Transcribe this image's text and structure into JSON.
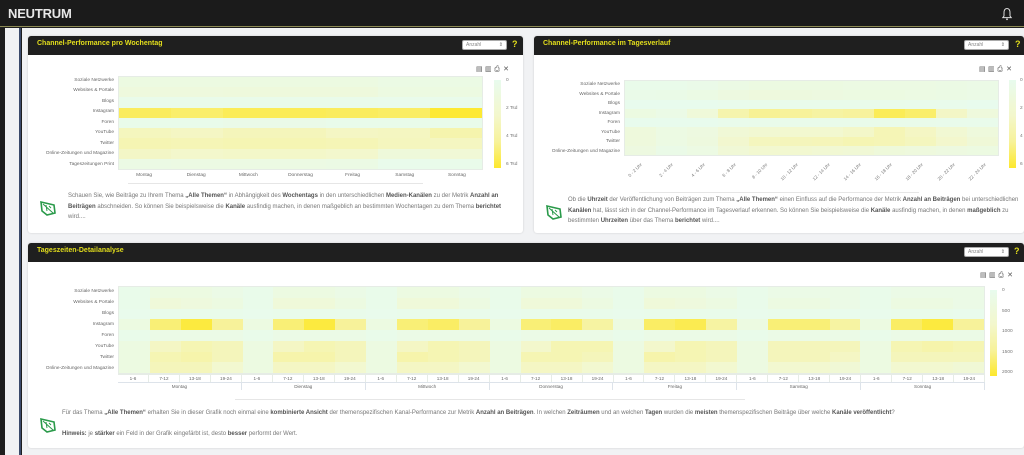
{
  "app": {
    "logo": "NEUTRUM"
  },
  "panels": [
    {
      "title": "Channel-Performance pro Wochentag",
      "metric_select": "Anzahl",
      "help": "?",
      "description": {
        "p1": "Schauen Sie, wie Beiträge zu Ihrem Thema ",
        "b1": "„Alle Themen“",
        "p2": " in Abhängigkeit des ",
        "b2": "Wochentags",
        "p3": " in den unterschiedlichen ",
        "b3": "Medien-Kanälen",
        "p4": " zu der Metrik ",
        "b4": "Anzahl an Beiträgen",
        "p5": " abschneiden. So können Sie beispielsweise die ",
        "b5": "Kanäle",
        "p6": " ausfindig machen, in denen maßgeblich an bestimmten Wochentagen zu dem Thema ",
        "b6": "berichtet",
        "p7": " wird...."
      }
    },
    {
      "title": "Channel-Performance im Tagesverlauf",
      "metric_select": "Anzahl",
      "help": "?",
      "description": {
        "p1": "Ob die ",
        "b1": "Uhrzeit",
        "p2": " der Veröffentlichung von Beiträgen zum Thema ",
        "b2": "„Alle Themen“",
        "p3": " einen Einfluss auf die Performance der Metrik ",
        "b3": "Anzahl an Beiträgen",
        "p4": " bei unterschiedlichen ",
        "b4": "Kanälen",
        "p5": " hat, lässt sich in der Channel-Performance im Tagesverlauf erkennen. So können Sie beispielsweise die ",
        "b5": "Kanäle",
        "p6": " ausfindig machen, in denen ",
        "b6": "maßgeblich",
        "p7": " zu bestimmten ",
        "b7": "Uhrzeiten",
        "p8": " über das Thema ",
        "b8": "berichtet",
        "p9": " wird...."
      }
    },
    {
      "title": "Tageszeiten-Detailanalyse",
      "metric_select": "Anzahl",
      "help": "?",
      "description": {
        "p1": "Für das Thema ",
        "b1": "„Alle Themen“",
        "p2": " erhalten Sie in dieser Grafik noch einmal eine ",
        "b2": "kombinierte Ansicht",
        "p3": " der themenspezifischen Kanal-Performance zur Metrik ",
        "b3": "Anzahl an Beiträgen",
        "p4": ". In welchen ",
        "b4": "Zeiträumen",
        "p5": " und an welchen ",
        "b5": "Tagen",
        "p6": " wurden die ",
        "b6": "meisten",
        "p7": " themenspezifischen Beiträge über welche ",
        "b7": "Kanäle veröffentlicht",
        "p8": "?",
        "hint_label": "Hinweis:",
        "h1": " je ",
        "hb1": "stärker",
        "h2": " ein Feld in der Grafik eingefärbt ist, desto ",
        "hb2": "besser",
        "h3": " performt der Wert."
      }
    }
  ],
  "chart_data": [
    {
      "type": "heatmap",
      "title": "Channel-Performance pro Wochentag",
      "rows": [
        "Soziale Netzwerke",
        "Websites & Portale",
        "Blogs",
        "Instagram",
        "Foren",
        "YouTube",
        "Twitter",
        "Online-Zeitungen und Magazine",
        "Tageszeitungen Print"
      ],
      "categories": [
        "Montag",
        "Dienstag",
        "Mittwoch",
        "Donnerstag",
        "Freitag",
        "Samstag",
        "Sonntag"
      ],
      "values": [
        [
          900,
          900,
          900,
          900,
          900,
          700,
          700
        ],
        [
          1200,
          1200,
          1300,
          1300,
          1300,
          900,
          900
        ],
        [
          300,
          300,
          300,
          300,
          300,
          200,
          200
        ],
        [
          5200,
          5000,
          5300,
          5300,
          5200,
          5100,
          5900
        ],
        [
          300,
          300,
          400,
          400,
          300,
          300,
          300
        ],
        [
          2900,
          2700,
          3000,
          3000,
          2700,
          2800,
          3500
        ],
        [
          3300,
          3200,
          3300,
          3300,
          3200,
          2900,
          2800
        ],
        [
          2600,
          2400,
          2500,
          2500,
          2300,
          1400,
          1700
        ],
        [
          700,
          800,
          800,
          800,
          700,
          200,
          300
        ]
      ],
      "legend": {
        "labels": [
          "0",
          "2 Tsd",
          "4 Tsd",
          "6 Tsd"
        ],
        "range": [
          0,
          6000
        ]
      }
    },
    {
      "type": "heatmap",
      "title": "Channel-Performance im Tagesverlauf",
      "rows": [
        "Soziale Netzwerke",
        "Websites & Portale",
        "Blogs",
        "Instagram",
        "Foren",
        "YouTube",
        "Twitter",
        "Online-Zeitungen und Magazine"
      ],
      "categories": [
        "0 - 2 Uhr",
        "2 - 4 Uhr",
        "4 - 6 Uhr",
        "6 - 8 Uhr",
        "8 - 10 Uhr",
        "10 - 12 Uhr",
        "12 - 14 Uhr",
        "14 - 16 Uhr",
        "16 - 18 Uhr",
        "18 - 20 Uhr",
        "20 - 22 Uhr",
        "22 - 24 Uhr"
      ],
      "values": [
        [
          300,
          300,
          400,
          700,
          900,
          900,
          900,
          800,
          800,
          800,
          700,
          600
        ],
        [
          400,
          500,
          700,
          1000,
          1200,
          1100,
          1000,
          900,
          900,
          800,
          700,
          600
        ],
        [
          100,
          100,
          100,
          200,
          300,
          300,
          300,
          300,
          300,
          200,
          200,
          100
        ],
        [
          900,
          600,
          1500,
          3500,
          4300,
          4200,
          3900,
          4100,
          5300,
          5000,
          2600,
          1300
        ],
        [
          100,
          100,
          100,
          200,
          300,
          300,
          300,
          300,
          300,
          300,
          200,
          200
        ],
        [
          1300,
          800,
          1000,
          1700,
          2000,
          2100,
          2100,
          2500,
          3200,
          2700,
          1900,
          1300
        ],
        [
          1300,
          800,
          1100,
          2200,
          2900,
          3000,
          3100,
          3300,
          3200,
          2900,
          2300,
          1600
        ],
        [
          1000,
          500,
          800,
          1700,
          2100,
          2100,
          1900,
          1800,
          1400,
          1200,
          1000,
          900
        ]
      ],
      "legend": {
        "labels": [
          "0",
          "2 Tsd",
          "4 Tsd",
          "6 Tsd"
        ],
        "range": [
          0,
          6000
        ]
      }
    },
    {
      "type": "heatmap",
      "title": "Tageszeiten-Detailanalyse",
      "rows": [
        "Soziale Netzwerke",
        "Websites & Portale",
        "Blogs",
        "Instagram",
        "Foren",
        "YouTube",
        "Twitter",
        "Online-Zeitungen und Magazine"
      ],
      "day_groups": [
        "Montag",
        "Dienstag",
        "Mittwoch",
        "Donnerstag",
        "Freitag",
        "Samstag",
        "Sonntag"
      ],
      "slots": [
        "1-6",
        "7-12",
        "13-18",
        "19-24"
      ],
      "values": [
        [
          100,
          300,
          300,
          200,
          100,
          300,
          300,
          200,
          100,
          300,
          300,
          200,
          100,
          300,
          300,
          200,
          100,
          300,
          300,
          200,
          100,
          200,
          200,
          200,
          100,
          200,
          200,
          200
        ],
        [
          100,
          500,
          400,
          300,
          100,
          500,
          500,
          300,
          100,
          500,
          500,
          300,
          100,
          500,
          500,
          300,
          100,
          500,
          400,
          300,
          100,
          300,
          300,
          200,
          100,
          300,
          300,
          200
        ],
        [
          50,
          100,
          100,
          100,
          50,
          100,
          100,
          100,
          50,
          100,
          100,
          100,
          50,
          100,
          100,
          100,
          50,
          100,
          100,
          100,
          50,
          100,
          100,
          50,
          50,
          100,
          100,
          50
        ],
        [
          300,
          1600,
          1900,
          1400,
          300,
          1600,
          1900,
          1400,
          300,
          1600,
          1700,
          1400,
          300,
          1600,
          1700,
          1300,
          300,
          1700,
          1800,
          1300,
          300,
          1600,
          1600,
          1300,
          300,
          1700,
          1900,
          1400
        ],
        [
          100,
          200,
          200,
          200,
          100,
          200,
          200,
          200,
          100,
          200,
          200,
          200,
          100,
          200,
          200,
          200,
          100,
          200,
          200,
          200,
          100,
          200,
          200,
          200,
          100,
          200,
          200,
          200
        ],
        [
          300,
          900,
          1100,
          1000,
          300,
          900,
          1100,
          1000,
          300,
          900,
          1100,
          1000,
          300,
          800,
          1100,
          1100,
          300,
          800,
          1100,
          1000,
          300,
          1000,
          1000,
          1000,
          300,
          1100,
          1200,
          1100
        ],
        [
          300,
          1100,
          1200,
          1000,
          300,
          1200,
          1200,
          1000,
          300,
          1200,
          1100,
          1000,
          300,
          1100,
          1100,
          1000,
          300,
          1200,
          1100,
          1000,
          300,
          1000,
          1000,
          900,
          300,
          1000,
          1000,
          1000
        ],
        [
          300,
          1000,
          1000,
          700,
          300,
          900,
          900,
          700,
          300,
          900,
          900,
          700,
          300,
          900,
          900,
          700,
          300,
          900,
          900,
          700,
          300,
          700,
          700,
          600,
          300,
          700,
          700,
          600
        ]
      ],
      "legend": {
        "labels": [
          "0",
          "500",
          "1000",
          "1500",
          "2000"
        ],
        "range": [
          0,
          2000
        ]
      }
    }
  ]
}
